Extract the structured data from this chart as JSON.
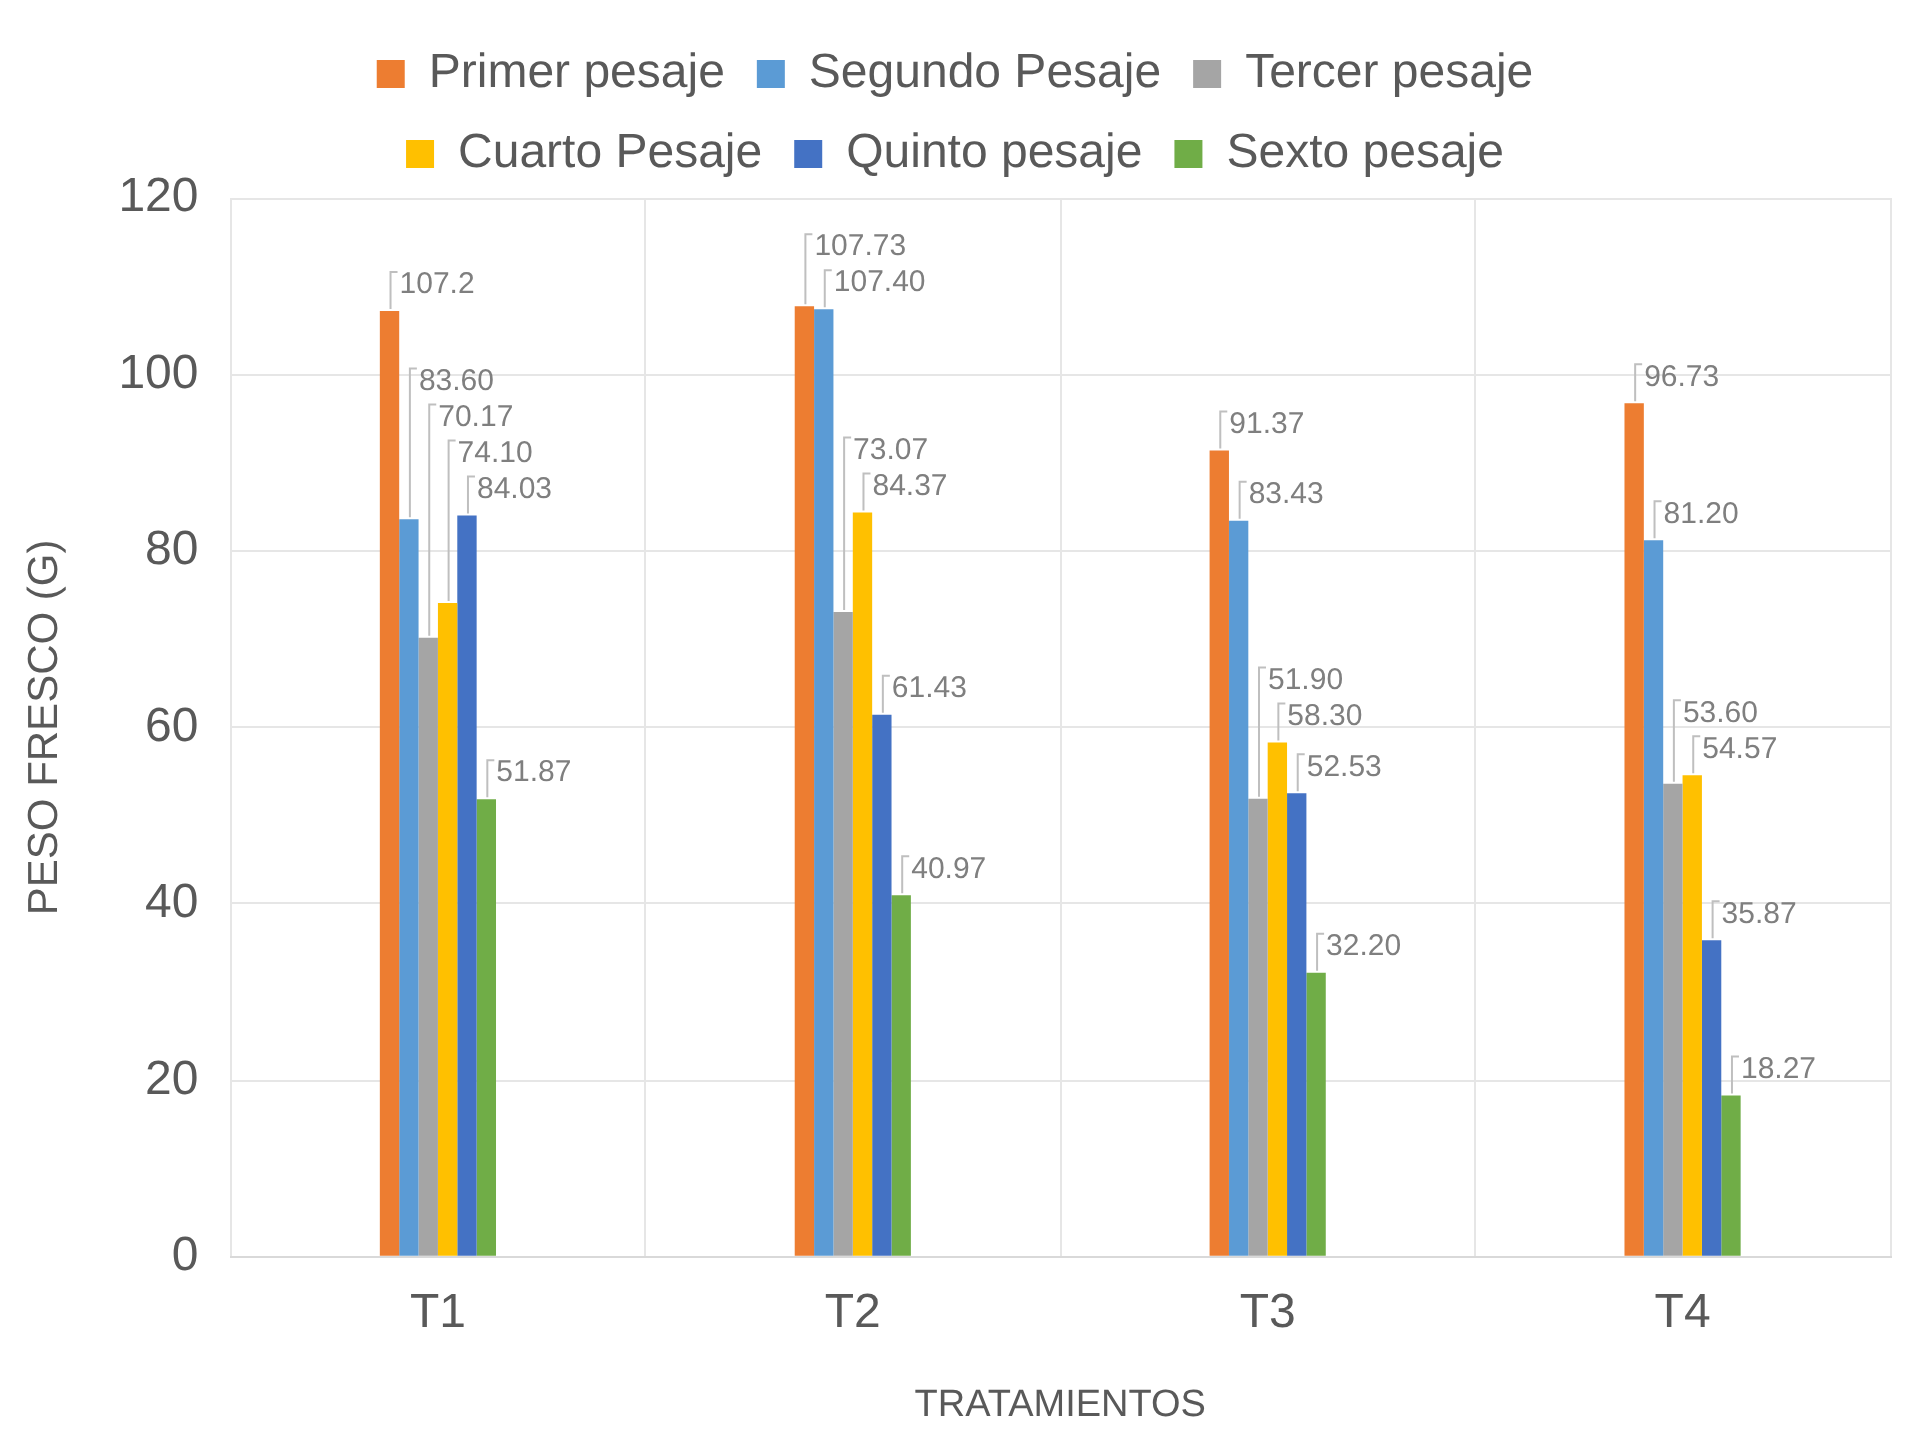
{
  "chart_data": {
    "type": "bar",
    "categories": [
      "T1",
      "T2",
      "T3",
      "T4"
    ],
    "series": [
      {
        "name": "Primer pesaje",
        "color": "#ed7d31",
        "values": [
          107.2,
          107.73,
          91.37,
          96.73
        ],
        "value_labels": [
          "107.2",
          "107.73",
          "91.37",
          "96.73"
        ]
      },
      {
        "name": "Segundo Pesaje",
        "color": "#5b9bd5",
        "values": [
          83.6,
          107.4,
          83.43,
          81.2
        ],
        "value_labels": [
          "83.60",
          "107.40",
          "83.43",
          "81.20"
        ]
      },
      {
        "name": "Tercer pesaje",
        "color": "#a5a5a5",
        "values": [
          70.17,
          73.07,
          51.9,
          53.6
        ],
        "value_labels": [
          "70.17",
          "73.07",
          "51.90",
          "53.60"
        ]
      },
      {
        "name": "Cuarto Pesaje",
        "color": "#ffc000",
        "values": [
          74.1,
          84.37,
          58.3,
          54.57
        ],
        "value_labels": [
          "74.10",
          "84.37",
          "58.30",
          "54.57"
        ]
      },
      {
        "name": "Quinto pesaje",
        "color": "#4472c4",
        "values": [
          84.03,
          61.43,
          52.53,
          35.87
        ],
        "value_labels": [
          "84.03",
          "61.43",
          "52.53",
          "35.87"
        ]
      },
      {
        "name": "Sexto pesaje",
        "color": "#70ad47",
        "values": [
          51.87,
          40.97,
          32.2,
          18.27
        ],
        "value_labels": [
          "51.87",
          "40.97",
          "32.20",
          "18.27"
        ]
      }
    ],
    "xlabel": "TRATAMIENTOS",
    "ylabel": "PESO FRESCO (G)",
    "ylim": [
      0,
      120
    ],
    "yticks": [
      0,
      20,
      40,
      60,
      80,
      100,
      120
    ],
    "grid": true,
    "legend": "top"
  }
}
